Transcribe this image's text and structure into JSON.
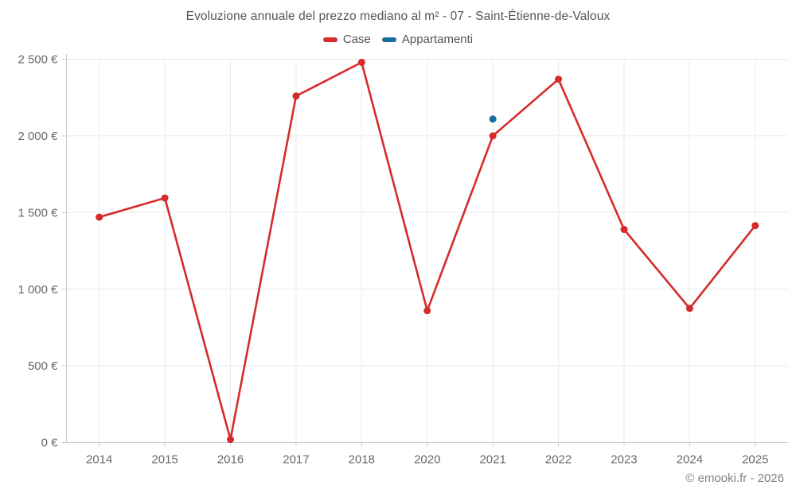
{
  "footer": {
    "copyright": "© emooki.fr - 2026"
  },
  "chart_data": {
    "type": "line",
    "title": "Evoluzione annuale del prezzo mediano al m² - 07 - Saint-Étienne-de-Valoux",
    "categories": [
      "2014",
      "2015",
      "2016",
      "2017",
      "2018",
      "2020",
      "2021",
      "2022",
      "2023",
      "2024",
      "2025"
    ],
    "series": [
      {
        "name": "Case",
        "color": "#d62b2b",
        "values": [
          1470,
          1595,
          20,
          2260,
          2480,
          860,
          2000,
          2370,
          1390,
          875,
          1415
        ]
      },
      {
        "name": "Appartamenti",
        "color": "#1b6d9c",
        "values": [
          null,
          null,
          null,
          null,
          null,
          null,
          2110,
          null,
          null,
          null,
          null
        ]
      }
    ],
    "ylabel": "",
    "xlabel": "",
    "ylim": [
      0,
      2500
    ],
    "ytick_step": 500,
    "ytick_labels": [
      "0 €",
      "500 €",
      "1 000 €",
      "1 500 €",
      "2 000 €",
      "2 500 €"
    ],
    "grid": true,
    "legend_position": "top",
    "colors": {
      "grid": "#ebebeb",
      "axis": "#cccccc",
      "tick_text": "#666a6d",
      "title_text": "#555657"
    }
  }
}
